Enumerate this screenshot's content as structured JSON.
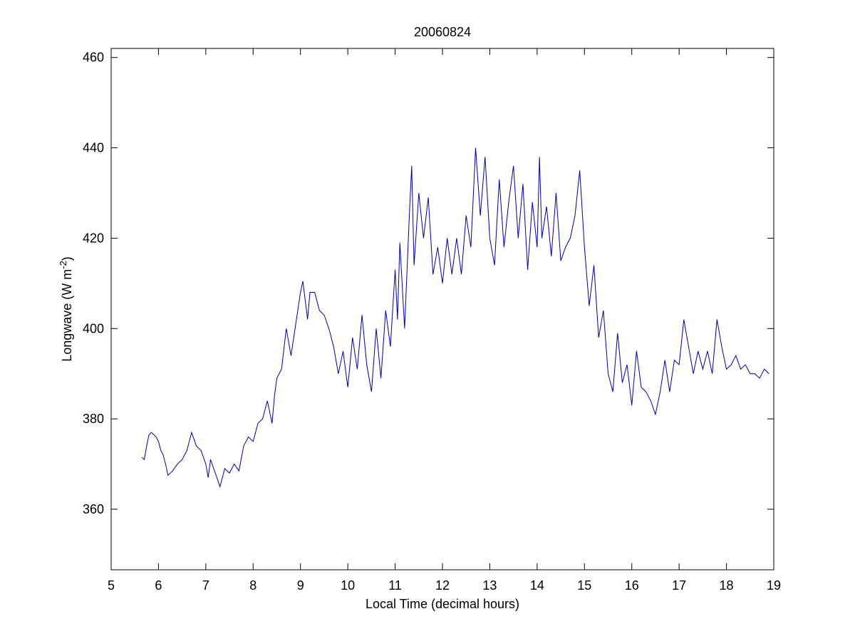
{
  "chart_data": {
    "type": "line",
    "title": "20060824",
    "xlabel": "Local Time (decimal hours)",
    "ylabel": {
      "text": "Longwave (W m",
      "superscript": "-2",
      "suffix": ")"
    },
    "xlim": [
      5,
      19
    ],
    "ylim": [
      346.6,
      462
    ],
    "xticks": [
      5,
      6,
      7,
      8,
      9,
      10,
      11,
      12,
      13,
      14,
      15,
      16,
      17,
      18,
      19
    ],
    "yticks": [
      360,
      380,
      400,
      420,
      440,
      460
    ],
    "series": [
      {
        "color": "#0000a0",
        "x": [
          5.65,
          5.7,
          5.75,
          5.8,
          5.85,
          5.9,
          5.95,
          6.0,
          6.05,
          6.1,
          6.15,
          6.2,
          6.3,
          6.4,
          6.5,
          6.6,
          6.7,
          6.8,
          6.9,
          7.0,
          7.05,
          7.1,
          7.2,
          7.3,
          7.4,
          7.5,
          7.6,
          7.7,
          7.8,
          7.9,
          8.0,
          8.1,
          8.2,
          8.3,
          8.4,
          8.45,
          8.5,
          8.6,
          8.7,
          8.8,
          8.9,
          9.0,
          9.05,
          9.15,
          9.2,
          9.3,
          9.4,
          9.5,
          9.6,
          9.7,
          9.8,
          9.9,
          10.0,
          10.1,
          10.2,
          10.3,
          10.4,
          10.5,
          10.6,
          10.7,
          10.8,
          10.9,
          11.0,
          11.05,
          11.1,
          11.2,
          11.3,
          11.35,
          11.4,
          11.5,
          11.6,
          11.7,
          11.8,
          11.9,
          12.0,
          12.1,
          12.2,
          12.3,
          12.4,
          12.5,
          12.6,
          12.7,
          12.8,
          12.9,
          13.0,
          13.1,
          13.2,
          13.3,
          13.4,
          13.5,
          13.6,
          13.7,
          13.8,
          13.9,
          14.0,
          14.05,
          14.1,
          14.2,
          14.3,
          14.4,
          14.5,
          14.6,
          14.7,
          14.8,
          14.9,
          15.0,
          15.1,
          15.2,
          15.3,
          15.4,
          15.5,
          15.6,
          15.7,
          15.8,
          15.9,
          16.0,
          16.1,
          16.2,
          16.3,
          16.4,
          16.5,
          16.6,
          16.7,
          16.8,
          16.9,
          17.0,
          17.1,
          17.2,
          17.3,
          17.4,
          17.5,
          17.6,
          17.7,
          17.8,
          17.9,
          18.0,
          18.1,
          18.2,
          18.3,
          18.4,
          18.5,
          18.6,
          18.7,
          18.8,
          18.9
        ],
        "values": [
          371.5,
          371,
          374,
          376.5,
          377,
          376.5,
          376,
          375,
          373,
          372,
          370,
          367.5,
          368.5,
          370,
          371,
          373,
          377,
          374,
          373,
          370,
          367,
          371,
          368,
          365,
          369,
          368,
          370,
          368.5,
          374,
          376,
          375,
          379,
          380,
          384,
          379,
          385,
          389,
          391,
          400,
          394,
          401,
          408,
          410.5,
          402,
          408,
          408,
          404,
          403,
          400,
          396,
          390,
          395,
          387,
          398,
          391,
          403,
          392,
          386,
          400,
          389,
          404,
          396,
          413,
          402,
          419,
          400,
          425,
          436,
          414,
          430,
          420,
          429,
          412,
          418,
          410,
          420,
          412,
          420,
          412,
          425,
          418,
          440,
          425,
          438,
          420,
          414,
          433,
          418,
          428,
          436,
          420,
          432,
          413,
          428,
          418,
          438,
          420,
          427,
          416,
          430,
          415,
          418,
          420,
          425,
          435,
          418,
          405,
          414,
          398,
          404,
          390,
          386,
          399,
          388,
          392,
          383,
          395,
          387,
          386,
          384,
          381,
          386,
          393,
          386,
          393,
          392,
          402,
          396,
          390,
          395,
          391,
          395,
          390,
          402,
          396,
          391,
          392,
          394,
          391,
          392,
          390,
          390,
          389,
          391,
          390
        ]
      }
    ]
  }
}
